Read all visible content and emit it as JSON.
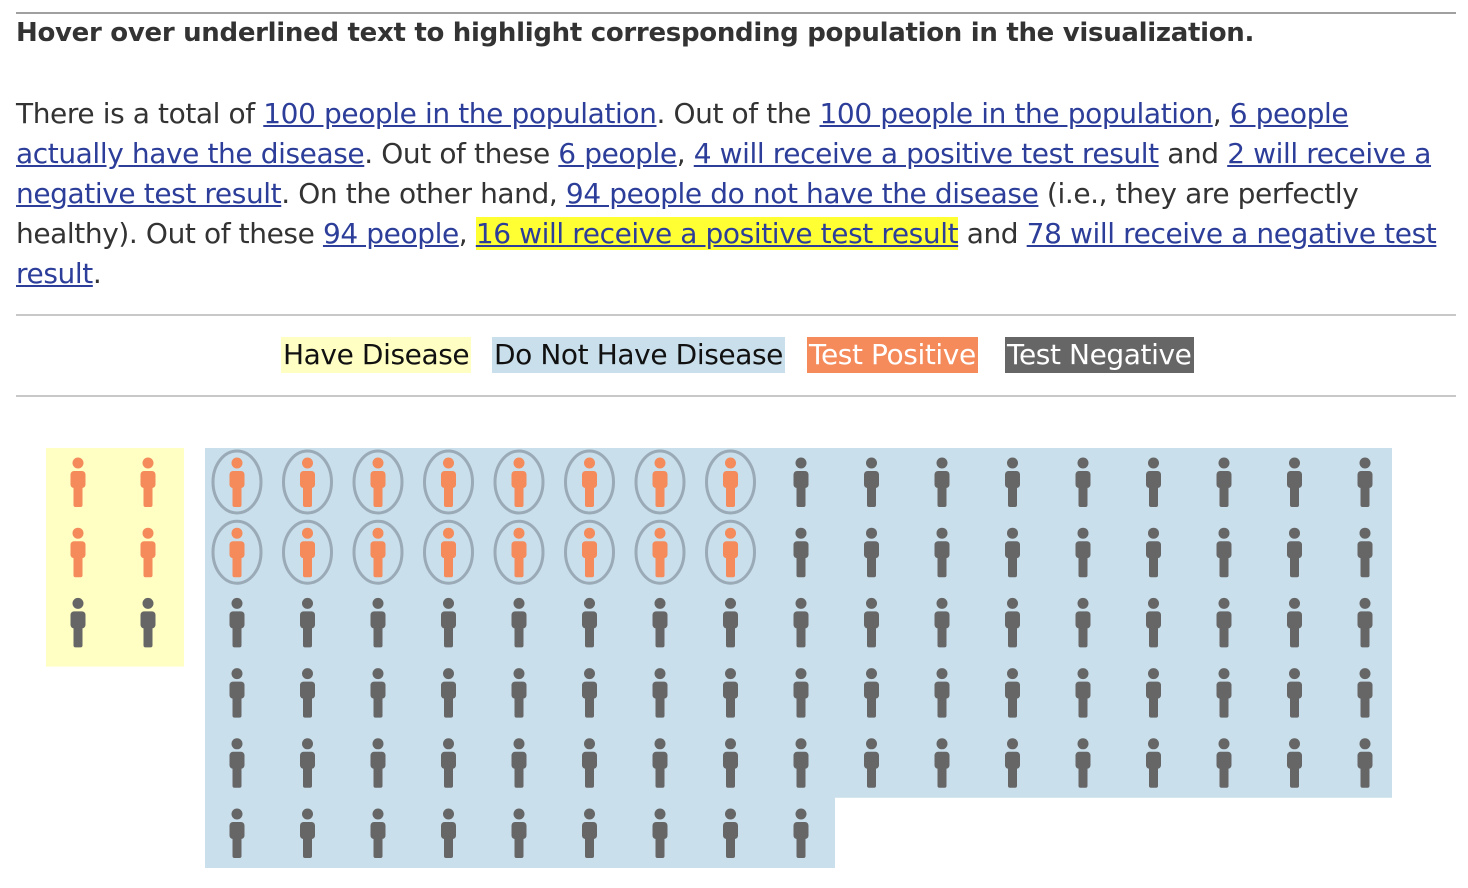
{
  "instruction": "Hover over underlined text to highlight corresponding population in the visualization.",
  "paragraph": {
    "t0": "There is a total of ",
    "l1": "100 people in the population",
    "t1": ". Out of the ",
    "l2": "100 people in the population",
    "t2": ", ",
    "l3": "6 people actually have the disease",
    "t3": ". Out of these ",
    "l4": "6 people",
    "t4": ", ",
    "l5": "4 will receive a positive test result",
    "t5": " and ",
    "l6": "2 will receive a negative test result",
    "t6": ". On the other hand, ",
    "l7": "94 people do not have the disease",
    "t7": " (i.e., they are perfectly healthy). Out of these ",
    "l8": "94 people",
    "t8": ", ",
    "l9": "16 will receive a positive test result",
    "t9": " and ",
    "l10": "78 will receive a negative test result",
    "t10": "."
  },
  "legend": {
    "have_disease": "Have Disease",
    "no_disease": "Do Not Have Disease",
    "test_positive": "Test Positive",
    "test_negative": "Test Negative"
  },
  "colors": {
    "have_disease_bg": "#ffffc4",
    "no_disease_bg": "#c9dfeb",
    "positive": "#f58a5b",
    "negative": "#666666",
    "highlight": "#ffff33",
    "link": "#2c3e99",
    "ring": "#9aaab6"
  },
  "population": {
    "total": 100,
    "have_disease": {
      "count": 6,
      "positive": 4,
      "negative": 2
    },
    "no_disease": {
      "count": 94,
      "positive": 16,
      "negative": 78
    },
    "highlighted_group": "no_disease_positive"
  },
  "icon": "person-icon"
}
